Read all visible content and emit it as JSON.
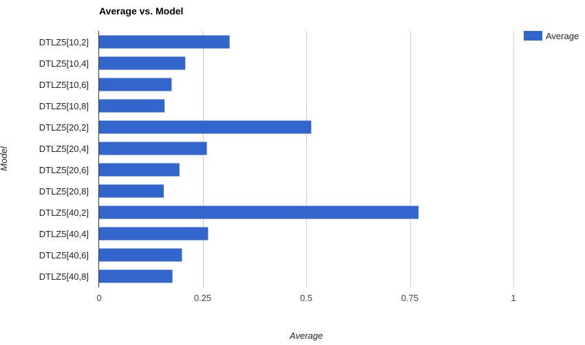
{
  "chart_data": {
    "type": "bar",
    "orientation": "horizontal",
    "title": "Average vs. Model",
    "xlabel": "Average",
    "ylabel": "Model",
    "xlim": [
      0,
      1
    ],
    "xticks": [
      0,
      0.25,
      0.5,
      0.75,
      1
    ],
    "xtick_labels": [
      "0",
      "0.25",
      "0.5",
      "0.75",
      "1"
    ],
    "grid": true,
    "legend": "top-right",
    "categories": [
      "DTLZ5[10,2]",
      "DTLZ5[10,4]",
      "DTLZ5[10,6]",
      "DTLZ5[10,8]",
      "DTLZ5[20,2]",
      "DTLZ5[20,4]",
      "DTLZ5[20,6]",
      "DTLZ5[20,8]",
      "DTLZ5[40,2]",
      "DTLZ5[40,4]",
      "DTLZ5[40,6]",
      "DTLZ5[40,8]"
    ],
    "series": [
      {
        "name": "Average",
        "color": "#3366cc",
        "values": [
          0.315,
          0.208,
          0.175,
          0.158,
          0.512,
          0.26,
          0.194,
          0.156,
          0.771,
          0.263,
          0.2,
          0.177
        ]
      }
    ]
  }
}
